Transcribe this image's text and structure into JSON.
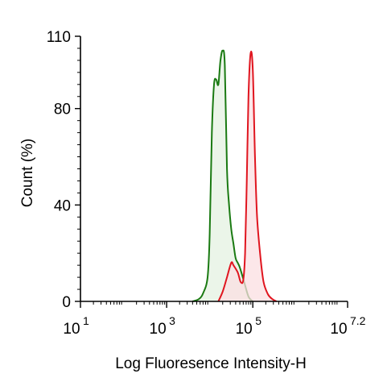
{
  "chart_data": {
    "type": "area",
    "xscale": "log10",
    "xlim_exponent": [
      1,
      7.2
    ],
    "ylim": [
      0,
      110
    ],
    "grid": false,
    "legend": "none",
    "xlabel": "Log Fluoresence Intensity-H",
    "ylabel": "Count  (%)",
    "x_tick_labels": [
      {
        "base": "10",
        "exp": "1"
      },
      {
        "base": "10",
        "exp": "3"
      },
      {
        "base": "10",
        "exp": "5"
      },
      {
        "base": "10",
        "exp": "7.2"
      }
    ],
    "y_ticks": [
      0,
      40,
      80,
      110
    ],
    "series": [
      {
        "color": "#1a7a12",
        "fill": "#e4f1e2",
        "log_x": [
          3.6,
          3.75,
          3.85,
          3.95,
          4.0,
          4.05,
          4.1,
          4.15,
          4.2,
          4.25,
          4.3,
          4.35,
          4.4,
          4.45,
          4.5,
          4.55,
          4.6,
          4.65,
          4.7,
          4.8,
          4.9,
          5.0
        ],
        "y": [
          0,
          1,
          3.5,
          10,
          28,
          70,
          90,
          92,
          90,
          100,
          104,
          98,
          55,
          40,
          30,
          24,
          18,
          16,
          14,
          8,
          2,
          0
        ]
      },
      {
        "color": "#e0151f",
        "fill": "#fbdfe2",
        "log_x": [
          4.2,
          4.3,
          4.4,
          4.5,
          4.55,
          4.65,
          4.72,
          4.78,
          4.82,
          4.86,
          4.9,
          4.95,
          5.0,
          5.05,
          5.1,
          5.18,
          5.25,
          5.35,
          5.45,
          5.55
        ],
        "y": [
          0,
          4,
          10,
          16,
          15,
          12,
          8,
          9,
          20,
          50,
          85,
          103,
          96,
          60,
          35,
          18,
          8,
          3,
          1,
          0
        ]
      }
    ]
  }
}
